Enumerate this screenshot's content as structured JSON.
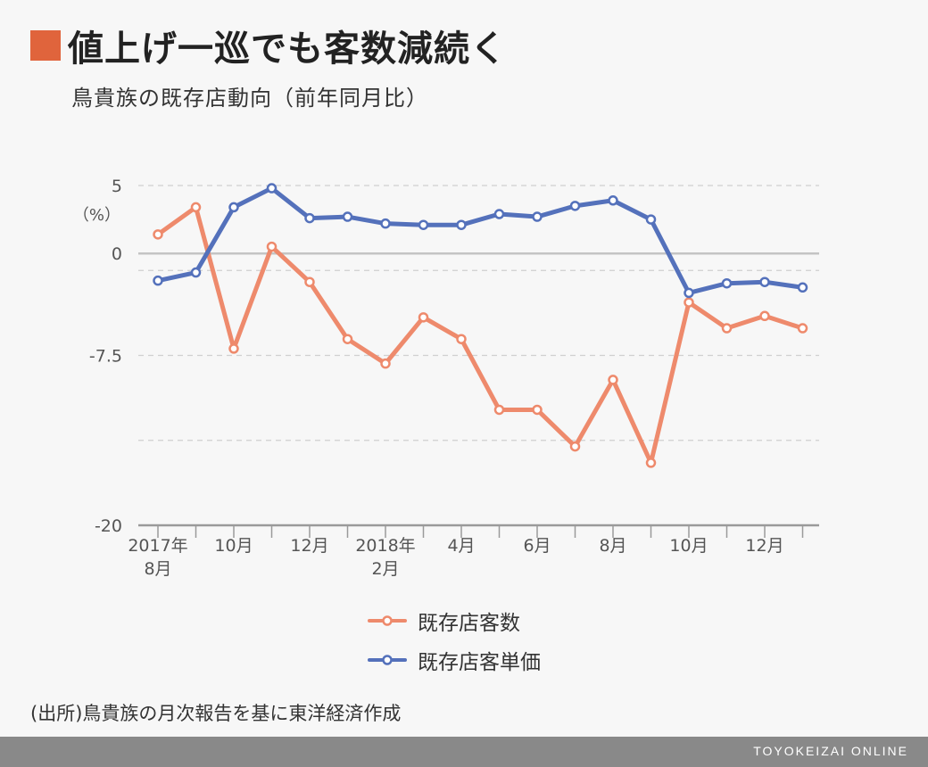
{
  "header": {
    "title": "値上げ一巡でも客数減続く",
    "subtitle": "鳥貴族の既存店動向（前年同月比）"
  },
  "source": "(出所)鳥貴族の月次報告を基に東洋経済作成",
  "footer": {
    "brand": "TOYOKEIZAI ONLINE"
  },
  "colors": {
    "accent": "#e0643c",
    "customers": "#ee8a6c",
    "unit_price": "#5471bb"
  },
  "chart_data": {
    "type": "line",
    "unit_label": "（%）",
    "ylim": [
      -20,
      5
    ],
    "y_ticks": [
      {
        "value": 5,
        "label": "5"
      },
      {
        "value": 0,
        "label": "0"
      },
      {
        "value": -7.5,
        "label": "-7.5"
      },
      {
        "value": -20,
        "label": "-20"
      }
    ],
    "y_gridlines": [
      5,
      -1.25,
      -7.5,
      -13.75
    ],
    "x_tick_labels": [
      {
        "index": 0,
        "lines": [
          "2017年",
          "8月"
        ]
      },
      {
        "index": 2,
        "lines": [
          "10月"
        ]
      },
      {
        "index": 4,
        "lines": [
          "12月"
        ]
      },
      {
        "index": 6,
        "lines": [
          "2018年",
          "2月"
        ]
      },
      {
        "index": 8,
        "lines": [
          "4月"
        ]
      },
      {
        "index": 10,
        "lines": [
          "6月"
        ]
      },
      {
        "index": 12,
        "lines": [
          "8月"
        ]
      },
      {
        "index": 14,
        "lines": [
          "10月"
        ]
      },
      {
        "index": 16,
        "lines": [
          "12月"
        ]
      }
    ],
    "categories": [
      "2017/8",
      "2017/9",
      "2017/10",
      "2017/11",
      "2017/12",
      "2018/1",
      "2018/2",
      "2018/3",
      "2018/4",
      "2018/5",
      "2018/6",
      "2018/7",
      "2018/8",
      "2018/9",
      "2018/10",
      "2018/11",
      "2018/12",
      "2019/1"
    ],
    "series": [
      {
        "name": "既存店客数",
        "color": "#ee8a6c",
        "values": [
          1.4,
          3.4,
          -7.0,
          0.5,
          -2.1,
          -6.3,
          -8.1,
          -4.7,
          -6.3,
          -11.5,
          -11.5,
          -14.2,
          -9.3,
          -15.4,
          -3.6,
          -5.5,
          -4.6,
          -5.5
        ]
      },
      {
        "name": "既存店客単価",
        "color": "#5471bb",
        "values": [
          -2.0,
          -1.4,
          3.4,
          4.8,
          2.6,
          2.7,
          2.2,
          2.1,
          2.1,
          2.9,
          2.7,
          3.5,
          3.9,
          2.5,
          -2.9,
          -2.2,
          -2.1,
          -2.5
        ]
      }
    ]
  }
}
